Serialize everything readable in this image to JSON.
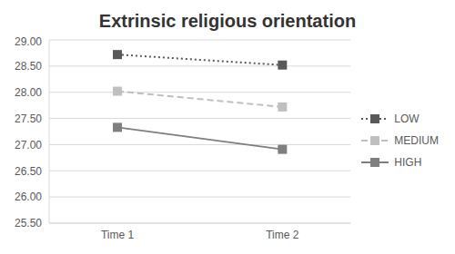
{
  "chart_data": {
    "type": "line",
    "title": "Extrinsic religious orientation",
    "categories": [
      "Time 1",
      "Time 2"
    ],
    "series": [
      {
        "name": "LOW",
        "color": "#595959",
        "values": [
          28.72,
          28.52
        ],
        "marker": "square",
        "line_style": "dotted"
      },
      {
        "name": "MEDIUM",
        "color": "#bfbfbf",
        "values": [
          28.02,
          27.72
        ],
        "marker": "square",
        "line_style": "dashed"
      },
      {
        "name": "HIGH",
        "color": "#7f7f7f",
        "values": [
          27.33,
          26.91
        ],
        "marker": "square",
        "line_style": "solid"
      }
    ],
    "ylim": [
      25.5,
      29
    ],
    "yticks": [
      {
        "value": 25.5,
        "label": "25.50"
      },
      {
        "value": 26,
        "label": "26.00"
      },
      {
        "value": 26.5,
        "label": "26.50"
      },
      {
        "value": 27,
        "label": "27.00"
      },
      {
        "value": 27.5,
        "label": "27.50"
      },
      {
        "value": 28,
        "label": "28.00"
      },
      {
        "value": 28.5,
        "label": "28.50"
      },
      {
        "value": 29,
        "label": "29.00"
      }
    ],
    "grid": true,
    "legend": "right"
  }
}
